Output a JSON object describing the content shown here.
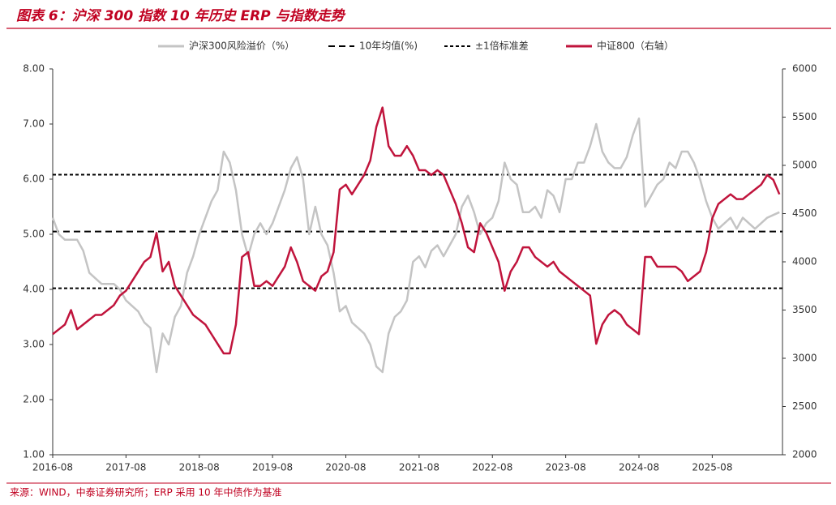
{
  "chart_data": {
    "type": "line",
    "title": "图表 6：沪深 300 指数 10 年历史 ERP 与指数走势",
    "source": "来源：WIND，中泰证券研究所；ERP 采用 10 年中债作为基准",
    "categories": [
      "2016-08",
      null,
      null,
      null,
      null,
      null,
      null,
      null,
      null,
      null,
      null,
      null,
      "2017-08",
      null,
      null,
      null,
      null,
      null,
      null,
      null,
      null,
      null,
      null,
      null,
      "2018-08",
      null,
      null,
      null,
      null,
      null,
      null,
      null,
      null,
      null,
      null,
      null,
      "2019-08",
      null,
      null,
      null,
      null,
      null,
      null,
      null,
      null,
      null,
      null,
      null,
      "2020-08",
      null,
      null,
      null,
      null,
      null,
      null,
      null,
      null,
      null,
      null,
      null,
      "2021-08",
      null,
      null,
      null,
      null,
      null,
      null,
      null,
      null,
      null,
      null,
      null,
      "2022-08",
      null,
      null,
      null,
      null,
      null,
      null,
      null,
      null,
      null,
      null,
      null,
      "2023-08",
      null,
      null,
      null,
      null,
      null,
      null,
      null,
      null,
      null,
      null,
      null,
      "2024-08",
      null,
      null,
      null,
      null,
      null,
      null,
      null,
      null,
      null,
      null,
      null,
      "2025-08",
      null,
      null,
      null,
      null,
      null,
      null,
      null,
      null,
      null,
      null,
      null
    ],
    "series": [
      {
        "name": "沪深300风险溢价（%）",
        "color": "#c4c4c4",
        "axis": "y",
        "values": [
          5.3,
          5.0,
          4.9,
          4.9,
          4.9,
          4.7,
          4.3,
          4.2,
          4.1,
          4.1,
          4.1,
          4.0,
          3.8,
          3.7,
          3.6,
          3.4,
          3.3,
          2.5,
          3.2,
          3.0,
          3.5,
          3.7,
          4.3,
          4.6,
          5.0,
          5.3,
          5.6,
          5.8,
          6.5,
          6.3,
          5.8,
          5.0,
          4.6,
          5.0,
          5.2,
          5.0,
          5.2,
          5.5,
          5.8,
          6.2,
          6.4,
          6.0,
          5.0,
          5.5,
          5.0,
          4.8,
          4.3,
          3.6,
          3.7,
          3.4,
          3.3,
          3.2,
          3.0,
          2.6,
          2.5,
          3.2,
          3.5,
          3.6,
          3.8,
          4.5,
          4.6,
          4.4,
          4.7,
          4.8,
          4.6,
          4.8,
          5.0,
          5.5,
          5.7,
          5.4,
          5.0,
          5.2,
          5.3,
          5.6,
          6.3,
          6.0,
          5.9,
          5.4,
          5.4,
          5.5,
          5.3,
          5.8,
          5.7,
          5.4,
          6.0,
          6.0,
          6.3,
          6.3,
          6.6,
          7.0,
          6.5,
          6.3,
          6.2,
          6.2,
          6.4,
          6.8,
          7.1,
          5.5,
          5.7,
          5.9,
          6.0,
          6.3,
          6.2,
          6.5,
          6.5,
          6.3,
          6.0,
          5.6,
          5.3,
          5.1,
          5.2,
          5.3,
          5.1,
          5.3,
          5.2,
          5.1,
          5.2,
          5.3,
          5.35,
          5.4
        ]
      },
      {
        "name": "中证800（右轴）",
        "color": "#c0143c",
        "axis": "y2",
        "values": [
          3250,
          3300,
          3350,
          3500,
          3300,
          3350,
          3400,
          3450,
          3450,
          3500,
          3550,
          3650,
          3700,
          3800,
          3900,
          4000,
          4050,
          4300,
          3900,
          4000,
          3750,
          3650,
          3550,
          3450,
          3400,
          3350,
          3250,
          3150,
          3050,
          3050,
          3350,
          4050,
          4100,
          3750,
          3750,
          3800,
          3750,
          3850,
          3950,
          4150,
          4000,
          3800,
          3750,
          3700,
          3850,
          3900,
          4100,
          4750,
          4800,
          4700,
          4800,
          4900,
          5050,
          5400,
          5600,
          5200,
          5100,
          5100,
          5200,
          5100,
          4950,
          4950,
          4900,
          4950,
          4900,
          4750,
          4600,
          4400,
          4150,
          4100,
          4400,
          4300,
          4150,
          4000,
          3700,
          3900,
          4000,
          4150,
          4150,
          4050,
          4000,
          3950,
          4000,
          3900,
          3850,
          3800,
          3750,
          3700,
          3650,
          3150,
          3350,
          3450,
          3500,
          3450,
          3350,
          3300,
          3250,
          4050,
          4050,
          3950,
          3950,
          3950,
          3950,
          3900,
          3800,
          3850,
          3900,
          4100,
          4450,
          4600,
          4650,
          4700,
          4650,
          4650,
          4700,
          4750,
          4800,
          4900,
          4850,
          4700
        ]
      }
    ],
    "hlines": [
      {
        "name": "10年均值(%)",
        "color": "#000000",
        "dash": "8,5",
        "values": [
          5.05
        ]
      },
      {
        "name": "±1倍标准差",
        "color": "#000000",
        "dash": "4,3",
        "values": [
          6.08,
          4.02
        ]
      }
    ],
    "ylim": [
      1,
      8
    ],
    "yticks": [
      {
        "value": 1,
        "label": "1.00"
      },
      {
        "value": 2,
        "label": "2.00"
      },
      {
        "value": 3,
        "label": "3.00"
      },
      {
        "value": 4,
        "label": "4.00"
      },
      {
        "value": 5,
        "label": "5.00"
      },
      {
        "value": 6,
        "label": "6.00"
      },
      {
        "value": 7,
        "label": "7.00"
      },
      {
        "value": 8,
        "label": "8.00"
      }
    ],
    "y2lim": [
      2000,
      6000
    ],
    "y2ticks": [
      2000,
      2500,
      3000,
      3500,
      4000,
      4500,
      5000,
      5500,
      6000
    ],
    "legend": "top",
    "grid": false
  }
}
